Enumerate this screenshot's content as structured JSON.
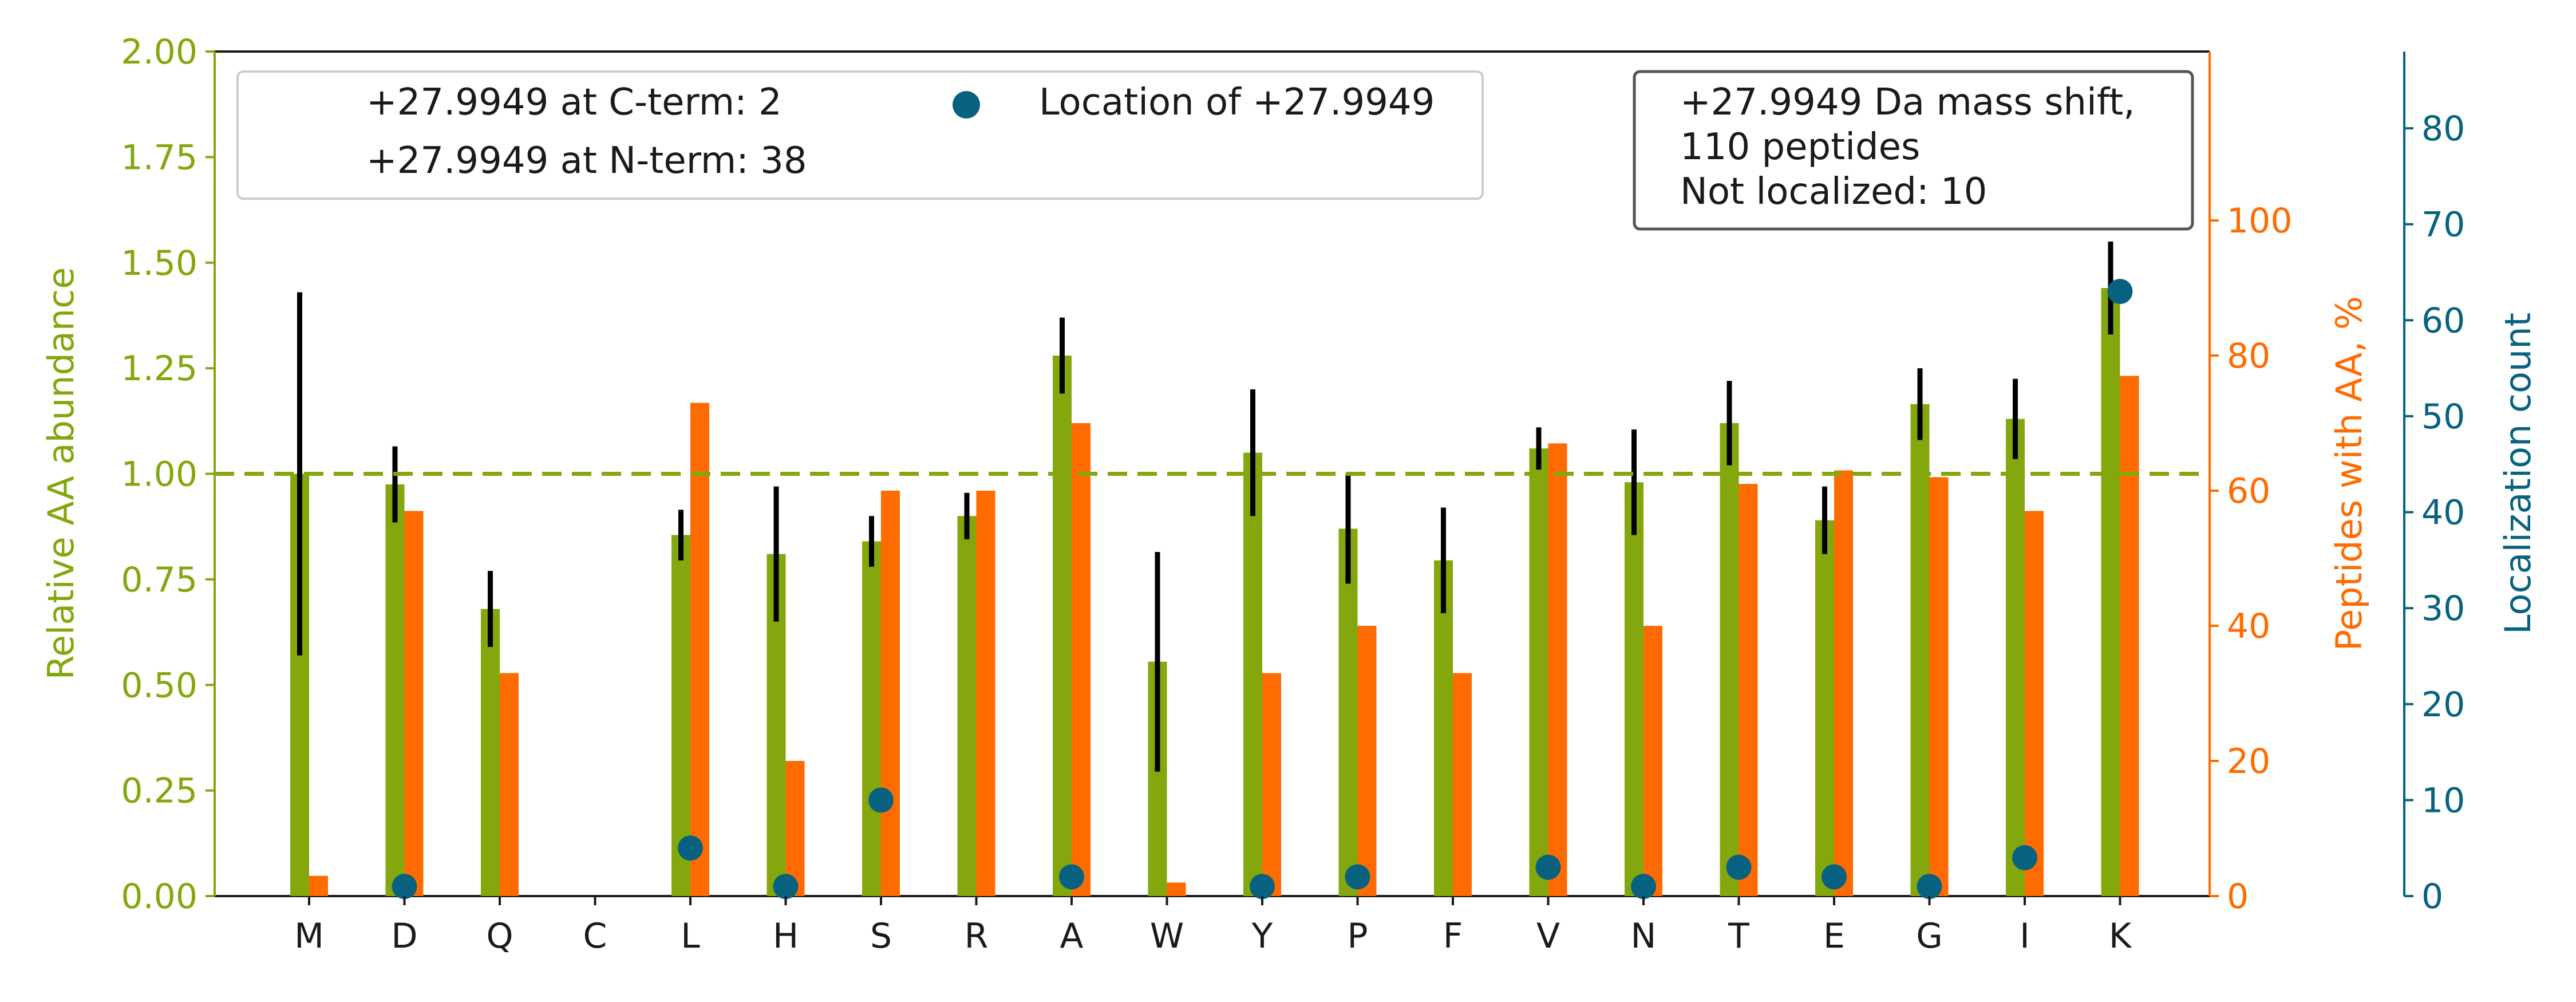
{
  "chart_data": {
    "type": "bar",
    "categories": [
      "M",
      "D",
      "Q",
      "C",
      "L",
      "H",
      "S",
      "R",
      "A",
      "W",
      "Y",
      "P",
      "F",
      "V",
      "N",
      "T",
      "E",
      "G",
      "I",
      "K"
    ],
    "series": [
      {
        "axis": "left",
        "color": "#83a70c",
        "values": [
          1.0,
          0.975,
          0.68,
          0,
          0.855,
          0.81,
          0.84,
          0.9,
          1.28,
          0.555,
          1.05,
          0.87,
          0.795,
          1.06,
          0.98,
          1.12,
          0.89,
          1.165,
          1.13,
          1.44
        ],
        "error": [
          0.43,
          0.09,
          0.09,
          0,
          0.06,
          0.16,
          0.06,
          0.055,
          0.09,
          0.26,
          0.15,
          0.13,
          0.125,
          0.05,
          0.125,
          0.1,
          0.08,
          0.085,
          0.095,
          0.11
        ]
      },
      {
        "axis": "right",
        "color": "#ff6b00",
        "values": [
          3,
          57,
          33,
          0,
          73,
          20,
          60,
          60,
          70,
          2,
          33,
          40,
          33,
          67,
          40,
          61,
          63,
          62,
          57,
          77
        ]
      },
      {
        "axis": "right2",
        "type": "scatter",
        "color": "#08627f",
        "values": [
          null,
          1,
          null,
          null,
          5,
          1,
          null,
          null,
          2,
          null,
          1,
          2,
          null,
          3,
          1,
          3,
          2,
          1,
          4,
          63
        ],
        "extra": {
          "S": 10
        }
      }
    ],
    "yleft": {
      "label": "Relative AA abundance",
      "range": [
        0,
        2.0
      ],
      "ticks": [
        "0.00",
        "0.25",
        "0.50",
        "0.75",
        "1.00",
        "1.25",
        "1.50",
        "1.75",
        "2.00"
      ],
      "color": "#83a70c"
    },
    "yright": {
      "label": "Peptides with AA, %",
      "range": [
        0,
        125
      ],
      "ticks": [
        "0",
        "20",
        "40",
        "60",
        "80",
        "100"
      ],
      "color": "#ff6b00"
    },
    "yright2": {
      "label": "Localization count",
      "range": [
        0,
        88
      ],
      "ticks": [
        "0",
        "10",
        "20",
        "30",
        "40",
        "50",
        "60",
        "70",
        "80"
      ],
      "color": "#08627f"
    },
    "reference_line": {
      "value": 1.0,
      "style": "dashed",
      "color": "#83a70c"
    },
    "legend": {
      "cterm": "+27.9949 at C-term: 2",
      "nterm": "+27.9949 at N-term: 38",
      "marker_label": "Location of +27.9949"
    },
    "info_box": {
      "line1": "+27.9949 Da mass shift,",
      "line2": "110 peptides",
      "line3": "Not localized: 10"
    }
  }
}
